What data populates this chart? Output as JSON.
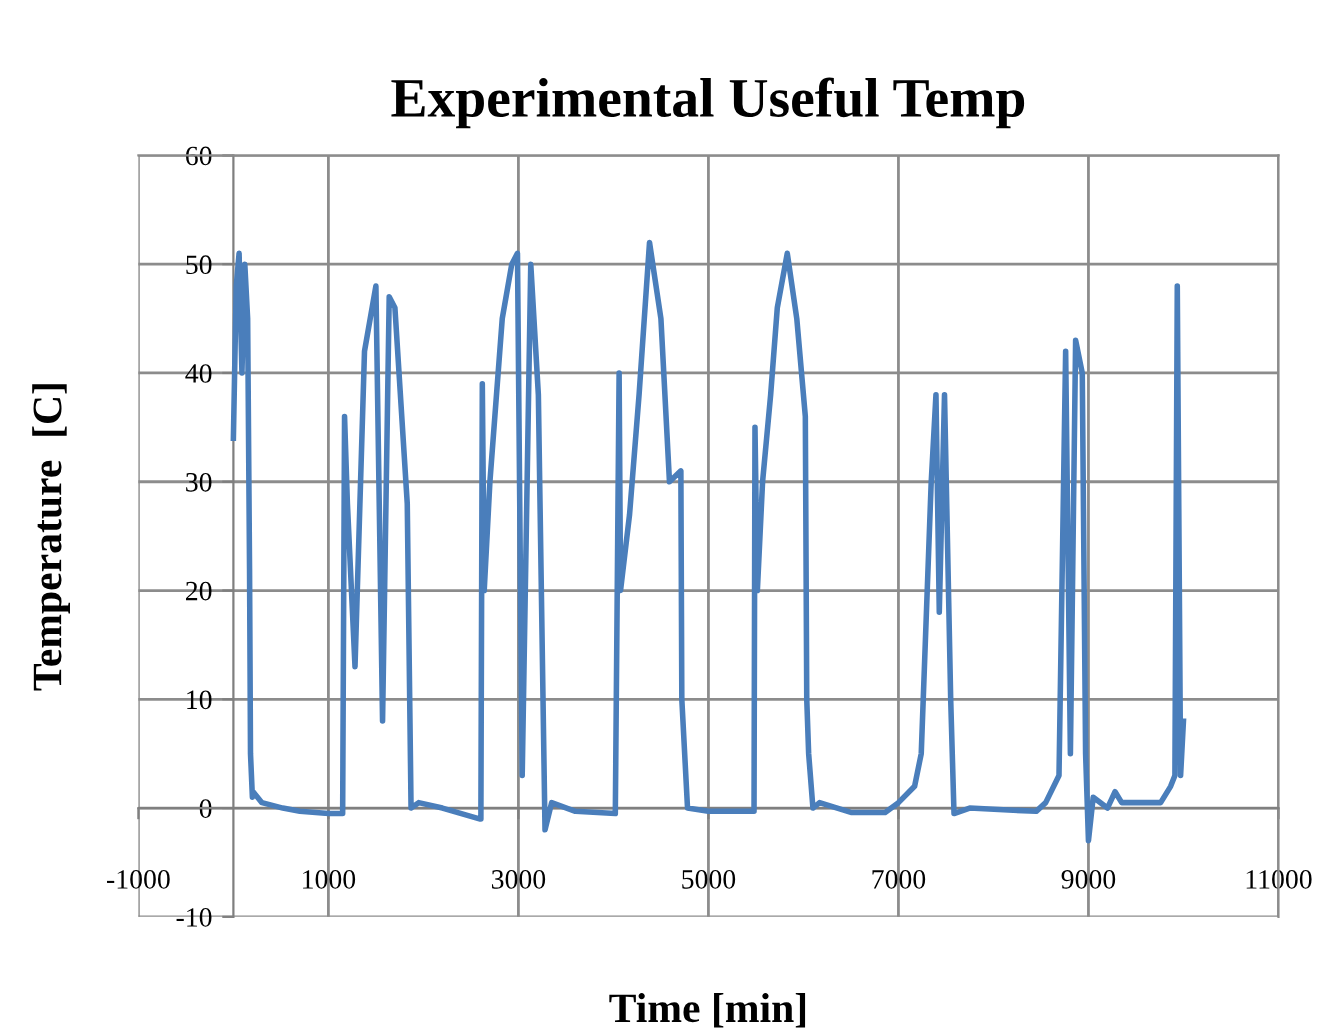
{
  "chart_data": {
    "type": "line",
    "title": "Experimental Useful Temp",
    "xlabel": "Time [min]",
    "ylabel": "Temperature  [C]",
    "xlim": [
      -1000,
      11000
    ],
    "xticks": [
      -1000,
      1000,
      3000,
      5000,
      7000,
      9000,
      11000
    ],
    "ylim": [
      -10,
      60
    ],
    "yticks": [
      -10,
      0,
      10,
      20,
      30,
      40,
      50,
      60
    ],
    "grid": true,
    "legend": false,
    "marker": "none",
    "line_style": "solid",
    "series": [
      {
        "color": "#4a7ebb",
        "x": [
          0,
          30,
          60,
          90,
          120,
          150,
          170,
          180,
          200,
          207,
          300,
          520,
          700,
          1000,
          1150,
          1170,
          1200,
          1280,
          1380,
          1500,
          1570,
          1640,
          1700,
          1830,
          1870,
          1950,
          2200,
          2590,
          2605,
          2620,
          2640,
          2700,
          2830,
          2930,
          2990,
          3040,
          3130,
          3210,
          3280,
          3350,
          3600,
          4020,
          4060,
          4075,
          4170,
          4270,
          4380,
          4500,
          4590,
          4710,
          4720,
          4780,
          5000,
          5480,
          5490,
          5515,
          5570,
          5655,
          5725,
          5830,
          5930,
          6020,
          6035,
          6055,
          6100,
          6170,
          6500,
          6860,
          7000,
          7170,
          7240,
          7345,
          7395,
          7430,
          7485,
          7550,
          7585,
          7750,
          8450,
          8550,
          8690,
          8760,
          8810,
          8865,
          8935,
          8970,
          9000,
          9050,
          9200,
          9280,
          9350,
          9760,
          9865,
          9910,
          9935,
          9970,
          10000
        ],
        "values": [
          34,
          48,
          51,
          40,
          50,
          45,
          22,
          5,
          1,
          1.5,
          0.5,
          0,
          -0.3,
          -0.5,
          -0.5,
          36,
          28,
          13,
          42,
          48,
          8,
          47,
          46,
          28,
          0,
          0.5,
          0,
          -1,
          -1,
          39,
          20,
          30,
          45,
          50,
          51,
          3,
          50,
          38,
          -2,
          0.5,
          -0.3,
          -0.5,
          40,
          20,
          27,
          38,
          52,
          45,
          30,
          31,
          10,
          0,
          -0.3,
          -0.3,
          35,
          20,
          30,
          38,
          46,
          51,
          45,
          36,
          10,
          5,
          0,
          0.5,
          -0.4,
          -0.4,
          0.5,
          2,
          5,
          30,
          38,
          18,
          38,
          10,
          -0.5,
          0,
          -0.3,
          0.5,
          3,
          42,
          5,
          43,
          40,
          5,
          -3,
          1,
          0,
          1.5,
          0.5,
          0.5,
          2,
          3,
          48,
          3,
          8
        ]
      }
    ]
  }
}
